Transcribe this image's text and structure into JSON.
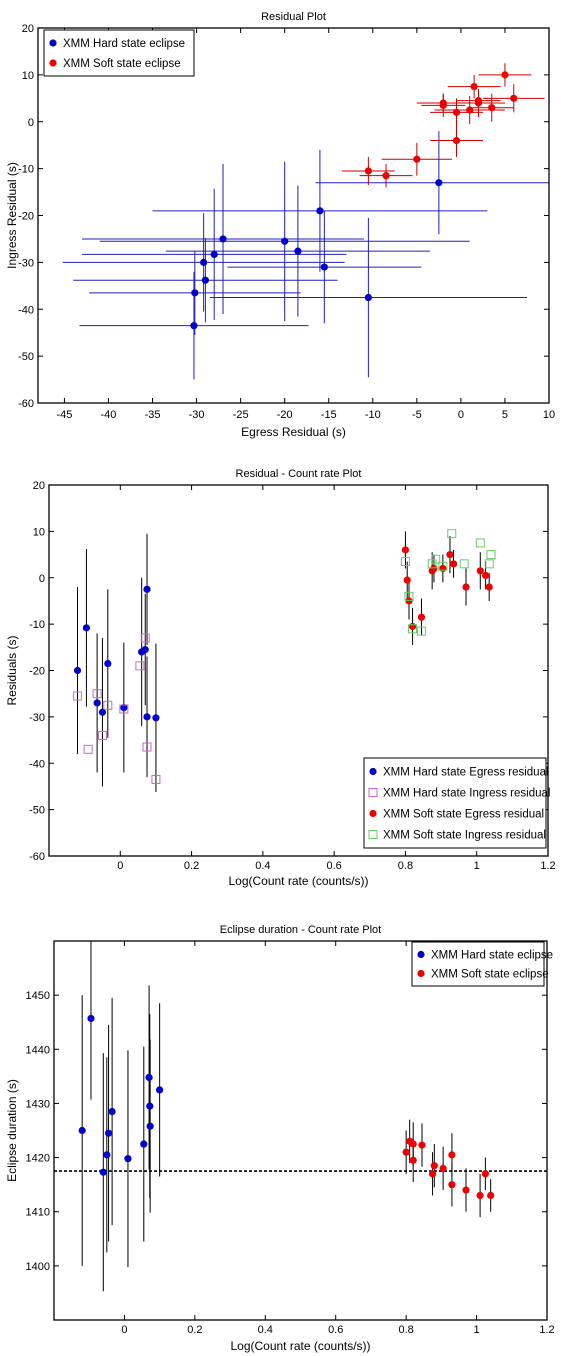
{
  "chart_data": [
    {
      "type": "scatter",
      "title": "Residual Plot",
      "xlabel": "Egress Residual (s)",
      "ylabel": "Ingress Residual (s)",
      "xlim": [
        -48,
        10
      ],
      "ylim": [
        -60,
        20
      ],
      "xticks": [
        -45,
        -40,
        -35,
        -30,
        -25,
        -20,
        -15,
        -10,
        -5,
        0,
        5,
        10
      ],
      "yticks": [
        -60,
        -50,
        -40,
        -30,
        -20,
        -10,
        0,
        10,
        20
      ],
      "legend_position": "top-left",
      "series": [
        {
          "name": "XMM Hard state eclipse",
          "color": "#0000cc",
          "marker": "filled-circle",
          "error_color": "#2020bb",
          "points": [
            {
              "x": -30.3,
              "y": -43.5,
              "xerr": 13,
              "yerr": 11.5
            },
            {
              "x": -30.2,
              "y": -36.5,
              "xerr": 12,
              "yerr": 9
            },
            {
              "x": -29.2,
              "y": -30.0,
              "xerr": 16,
              "yerr": 10.5
            },
            {
              "x": -29.0,
              "y": -33.8,
              "xerr": 15,
              "yerr": 9
            },
            {
              "x": -28.0,
              "y": -28.3,
              "xerr": 15,
              "yerr": 14
            },
            {
              "x": -27.0,
              "y": -25.0,
              "xerr": 16,
              "yerr": 16
            },
            {
              "x": -20.0,
              "y": -25.5,
              "xerr": 21,
              "yerr": 17
            },
            {
              "x": -18.5,
              "y": -27.6,
              "xerr": 15,
              "yerr": 14
            },
            {
              "x": -16.0,
              "y": -19.0,
              "xerr": 19,
              "yerr": 13
            },
            {
              "x": -15.5,
              "y": -31.0,
              "xerr": 11,
              "yerr": 12
            },
            {
              "x": -10.5,
              "y": -37.5,
              "xerr": 18,
              "yerr": 17
            },
            {
              "x": -2.5,
              "y": -13.0,
              "xerr": 14,
              "yerr": 11
            }
          ]
        },
        {
          "name": "XMM Soft state eclipse",
          "color": "#ee0000",
          "marker": "filled-circle",
          "error_color": "#cc0000",
          "points": [
            {
              "x": -10.5,
              "y": -10.5,
              "xerr": 3,
              "yerr": 3
            },
            {
              "x": -8.5,
              "y": -11.5,
              "xerr": 3,
              "yerr": 2.5
            },
            {
              "x": -5.0,
              "y": -8.0,
              "xerr": 4,
              "yerr": 3.5
            },
            {
              "x": -2.0,
              "y": 4.0,
              "xerr": 3,
              "yerr": 2
            },
            {
              "x": -2.0,
              "y": 3.5,
              "xerr": 2.5,
              "yerr": 2.5
            },
            {
              "x": -0.5,
              "y": 2.0,
              "xerr": 3,
              "yerr": 3
            },
            {
              "x": -0.5,
              "y": -4.0,
              "xerr": 3,
              "yerr": 3.5
            },
            {
              "x": 1.0,
              "y": 2.5,
              "xerr": 4,
              "yerr": 3
            },
            {
              "x": 1.5,
              "y": 7.5,
              "xerr": 3,
              "yerr": 2.5
            },
            {
              "x": 2.0,
              "y": 4.5,
              "xerr": 2.5,
              "yerr": 2.5
            },
            {
              "x": 2.0,
              "y": 4.0,
              "xerr": 3,
              "yerr": 3
            },
            {
              "x": 3.5,
              "y": 3.0,
              "xerr": 2.5,
              "yerr": 3
            },
            {
              "x": 5.0,
              "y": 10.0,
              "xerr": 3,
              "yerr": 2.5
            },
            {
              "x": 6.0,
              "y": 5.0,
              "xerr": 3.5,
              "yerr": 3
            }
          ]
        }
      ]
    },
    {
      "type": "scatter",
      "title": "Residual - Count rate Plot",
      "xlabel": "Log(Count rate (counts/s))",
      "ylabel": "Residuals (s)",
      "xlim": [
        -0.2,
        1.2
      ],
      "ylim": [
        -60,
        20
      ],
      "xticks": [
        0,
        0.2,
        0.4,
        0.6,
        0.8,
        1,
        1.2
      ],
      "yticks": [
        -60,
        -50,
        -40,
        -30,
        -20,
        -10,
        0,
        10,
        20
      ],
      "legend_position": "bottom-right",
      "series": [
        {
          "name": "XMM Hard state Egress residual",
          "color": "#0000cc",
          "marker": "filled-circle",
          "points": [
            {
              "x": -0.12,
              "y": -20,
              "yerr": 18
            },
            {
              "x": -0.095,
              "y": -10.8,
              "yerr": 17
            },
            {
              "x": -0.065,
              "y": -27,
              "yerr": 15
            },
            {
              "x": -0.05,
              "y": -29,
              "yerr": 16
            },
            {
              "x": -0.035,
              "y": -18.5,
              "yerr": 16
            },
            {
              "x": 0.01,
              "y": -28,
              "yerr": 14
            },
            {
              "x": 0.06,
              "y": -16,
              "yerr": 16
            },
            {
              "x": 0.07,
              "y": -15.5,
              "yerr": 12
            },
            {
              "x": 0.075,
              "y": -2.5,
              "yerr": 12
            },
            {
              "x": 0.075,
              "y": -30,
              "yerr": 13
            },
            {
              "x": 0.1,
              "y": -30.2,
              "yerr": 16
            }
          ]
        },
        {
          "name": "XMM Hard state Ingress residual",
          "color": "#cc66cc",
          "marker": "open-square",
          "points": [
            {
              "x": -0.12,
              "y": -25.5,
              "yerr": 0
            },
            {
              "x": -0.09,
              "y": -37,
              "yerr": 0
            },
            {
              "x": -0.065,
              "y": -25,
              "yerr": 0
            },
            {
              "x": -0.05,
              "y": -34,
              "yerr": 0
            },
            {
              "x": -0.035,
              "y": -27.5,
              "yerr": 0
            },
            {
              "x": 0.01,
              "y": -28.3,
              "yerr": 0
            },
            {
              "x": 0.055,
              "y": -19,
              "yerr": 0
            },
            {
              "x": 0.07,
              "y": -13,
              "yerr": 0
            },
            {
              "x": 0.075,
              "y": -36.5,
              "yerr": 0
            },
            {
              "x": 0.1,
              "y": -43.5,
              "yerr": 0
            }
          ]
        },
        {
          "name": "XMM Soft state Egress residual",
          "color": "#ee0000",
          "marker": "filled-circle",
          "points": [
            {
              "x": 0.8,
              "y": 6,
              "yerr": 4
            },
            {
              "x": 0.805,
              "y": -0.5,
              "yerr": 4
            },
            {
              "x": 0.81,
              "y": -5,
              "yerr": 4
            },
            {
              "x": 0.82,
              "y": -10.5,
              "yerr": 4
            },
            {
              "x": 0.845,
              "y": -8.5,
              "yerr": 4
            },
            {
              "x": 0.875,
              "y": 1.5,
              "yerr": 4
            },
            {
              "x": 0.88,
              "y": 2,
              "yerr": 3
            },
            {
              "x": 0.905,
              "y": 2,
              "yerr": 3
            },
            {
              "x": 0.925,
              "y": 5,
              "yerr": 4
            },
            {
              "x": 0.935,
              "y": 3,
              "yerr": 3
            },
            {
              "x": 0.97,
              "y": -2,
              "yerr": 4
            },
            {
              "x": 1.01,
              "y": 1.5,
              "yerr": 4
            },
            {
              "x": 1.025,
              "y": 0.5,
              "yerr": 3
            },
            {
              "x": 1.035,
              "y": -2,
              "yerr": 3
            }
          ]
        },
        {
          "name": "XMM Soft state Ingress residual",
          "color": "#66cc66",
          "marker": "open-square",
          "points": [
            {
              "x": 0.8,
              "y": 3.5,
              "yerr": 0
            },
            {
              "x": 0.81,
              "y": -4,
              "yerr": 0
            },
            {
              "x": 0.82,
              "y": -11,
              "yerr": 0
            },
            {
              "x": 0.845,
              "y": -11.5,
              "yerr": 0
            },
            {
              "x": 0.875,
              "y": 3,
              "yerr": 0
            },
            {
              "x": 0.885,
              "y": 4,
              "yerr": 0
            },
            {
              "x": 0.905,
              "y": 2.5,
              "yerr": 0
            },
            {
              "x": 0.93,
              "y": 9.5,
              "yerr": 0
            },
            {
              "x": 0.965,
              "y": 3,
              "yerr": 0
            },
            {
              "x": 1.01,
              "y": 7.5,
              "yerr": 0
            },
            {
              "x": 1.035,
              "y": 3,
              "yerr": 0
            },
            {
              "x": 1.04,
              "y": 5,
              "yerr": 0
            }
          ]
        }
      ]
    },
    {
      "type": "scatter",
      "title": "Eclipse duration - Count rate Plot",
      "xlabel": "Log(Count rate (counts/s))",
      "ylabel": "Eclipse duration (s)",
      "xlim": [
        -0.2,
        1.2
      ],
      "ylim": [
        1390,
        1460
      ],
      "xticks": [
        0,
        0.2,
        0.4,
        0.6,
        0.8,
        1,
        1.2
      ],
      "yticks": [
        1400,
        1410,
        1420,
        1430,
        1440,
        1450
      ],
      "legend_position": "top-right",
      "reference_line": {
        "y": 1417.5,
        "style": "dashed"
      },
      "series": [
        {
          "name": "XMM Hard state eclipse",
          "color": "#0000cc",
          "marker": "filled-circle",
          "points": [
            {
              "x": -0.12,
              "y": 1425,
              "yerr": 25
            },
            {
              "x": -0.095,
              "y": 1445.7,
              "yerr": 15
            },
            {
              "x": -0.06,
              "y": 1417.3,
              "yerr": 22
            },
            {
              "x": -0.05,
              "y": 1420.5,
              "yerr": 18
            },
            {
              "x": -0.045,
              "y": 1424.5,
              "yerr": 20
            },
            {
              "x": -0.035,
              "y": 1428.5,
              "yerr": 21
            },
            {
              "x": 0.01,
              "y": 1419.8,
              "yerr": 20
            },
            {
              "x": 0.055,
              "y": 1422.5,
              "yerr": 18
            },
            {
              "x": 0.07,
              "y": 1434.8,
              "yerr": 17
            },
            {
              "x": 0.072,
              "y": 1429.5,
              "yerr": 17
            },
            {
              "x": 0.073,
              "y": 1425.8,
              "yerr": 16
            },
            {
              "x": 0.1,
              "y": 1432.5,
              "yerr": 16
            }
          ]
        },
        {
          "name": "XMM Soft state eclipse",
          "color": "#ee0000",
          "marker": "filled-circle",
          "points": [
            {
              "x": 0.8,
              "y": 1421,
              "yerr": 4
            },
            {
              "x": 0.81,
              "y": 1423,
              "yerr": 4
            },
            {
              "x": 0.82,
              "y": 1422.5,
              "yerr": 4
            },
            {
              "x": 0.82,
              "y": 1419.5,
              "yerr": 4
            },
            {
              "x": 0.845,
              "y": 1422.3,
              "yerr": 4
            },
            {
              "x": 0.875,
              "y": 1417,
              "yerr": 4
            },
            {
              "x": 0.88,
              "y": 1418.5,
              "yerr": 4
            },
            {
              "x": 0.905,
              "y": 1418,
              "yerr": 4
            },
            {
              "x": 0.93,
              "y": 1420.5,
              "yerr": 4
            },
            {
              "x": 0.93,
              "y": 1415,
              "yerr": 4
            },
            {
              "x": 0.97,
              "y": 1414,
              "yerr": 4
            },
            {
              "x": 1.01,
              "y": 1413,
              "yerr": 4
            },
            {
              "x": 1.025,
              "y": 1417,
              "yerr": 3
            },
            {
              "x": 1.04,
              "y": 1413,
              "yerr": 3
            }
          ]
        }
      ]
    }
  ]
}
